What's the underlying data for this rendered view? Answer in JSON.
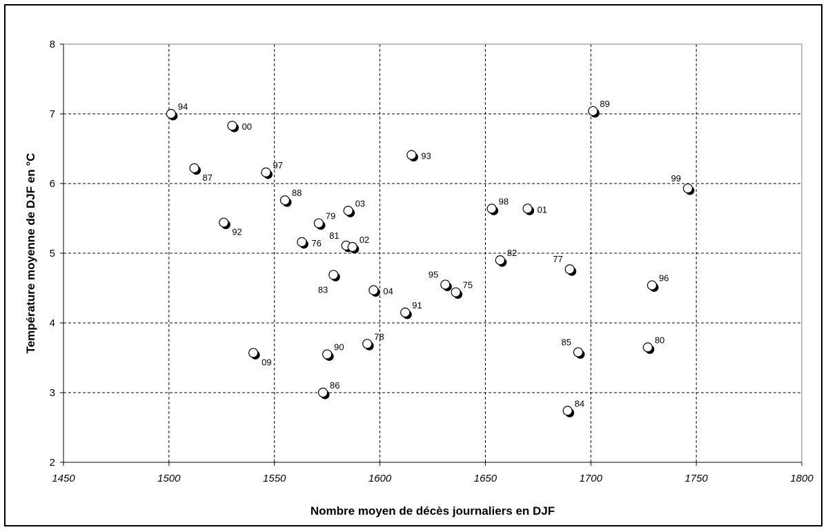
{
  "chart_data": {
    "type": "scatter",
    "title": "",
    "xlabel": "Nombre moyen de décès journaliers en DJF",
    "ylabel": "Température moyenne de DJF en °C",
    "xlim": [
      1450,
      1800
    ],
    "ylim": [
      2,
      8
    ],
    "x_ticks": [
      1450,
      1500,
      1550,
      1600,
      1650,
      1700,
      1750,
      1800
    ],
    "y_ticks": [
      2,
      3,
      4,
      5,
      6,
      7,
      8
    ],
    "grid": true,
    "grid_style": "dashed",
    "legend": "none",
    "marker": "circle-white-black-shadow",
    "points": [
      {
        "label": "94",
        "x": 1501,
        "y": 7.0,
        "label_pos": "upper-right"
      },
      {
        "label": "00",
        "x": 1530,
        "y": 6.83,
        "label_pos": "right"
      },
      {
        "label": "87",
        "x": 1512,
        "y": 6.22,
        "label_pos": "lower-right"
      },
      {
        "label": "97",
        "x": 1546,
        "y": 6.16,
        "label_pos": "upper-right"
      },
      {
        "label": "93",
        "x": 1615,
        "y": 6.41,
        "label_pos": "right"
      },
      {
        "label": "89",
        "x": 1701,
        "y": 7.04,
        "label_pos": "upper-right"
      },
      {
        "label": "99",
        "x": 1746,
        "y": 5.93,
        "label_pos": "upper-left"
      },
      {
        "label": "88",
        "x": 1555,
        "y": 5.76,
        "label_pos": "upper-right"
      },
      {
        "label": "79",
        "x": 1571,
        "y": 5.43,
        "label_pos": "upper-right"
      },
      {
        "label": "03",
        "x": 1585,
        "y": 5.61,
        "label_pos": "upper-right"
      },
      {
        "label": "98",
        "x": 1653,
        "y": 5.64,
        "label_pos": "upper-right"
      },
      {
        "label": "01",
        "x": 1670,
        "y": 5.64,
        "label_pos": "right"
      },
      {
        "label": "92",
        "x": 1526,
        "y": 5.44,
        "label_pos": "lower-right"
      },
      {
        "label": "76",
        "x": 1563,
        "y": 5.16,
        "label_pos": "right"
      },
      {
        "label": "81",
        "x": 1584,
        "y": 5.11,
        "label_pos": "upper-left"
      },
      {
        "label": "02",
        "x": 1587,
        "y": 5.09,
        "label_pos": "upper-right"
      },
      {
        "label": "82",
        "x": 1657,
        "y": 4.9,
        "label_pos": "upper-right"
      },
      {
        "label": "77",
        "x": 1690,
        "y": 4.77,
        "label_pos": "upper-left"
      },
      {
        "label": "96",
        "x": 1729,
        "y": 4.54,
        "label_pos": "upper-right"
      },
      {
        "label": "83",
        "x": 1578,
        "y": 4.69,
        "label_pos": "lower-left"
      },
      {
        "label": "04",
        "x": 1597,
        "y": 4.47,
        "label_pos": "right"
      },
      {
        "label": "95",
        "x": 1631,
        "y": 4.55,
        "label_pos": "upper-left"
      },
      {
        "label": "75",
        "x": 1636,
        "y": 4.44,
        "label_pos": "upper-right"
      },
      {
        "label": "91",
        "x": 1612,
        "y": 4.15,
        "label_pos": "upper-right"
      },
      {
        "label": "78",
        "x": 1594,
        "y": 3.7,
        "label_pos": "upper-right"
      },
      {
        "label": "90",
        "x": 1575,
        "y": 3.55,
        "label_pos": "upper-right"
      },
      {
        "label": "09",
        "x": 1540,
        "y": 3.57,
        "label_pos": "lower-right"
      },
      {
        "label": "85",
        "x": 1694,
        "y": 3.58,
        "label_pos": "upper-left"
      },
      {
        "label": "80",
        "x": 1727,
        "y": 3.65,
        "label_pos": "upper-right"
      },
      {
        "label": "86",
        "x": 1573,
        "y": 3.0,
        "label_pos": "upper-right"
      },
      {
        "label": "84",
        "x": 1689,
        "y": 2.74,
        "label_pos": "upper-right"
      }
    ]
  }
}
